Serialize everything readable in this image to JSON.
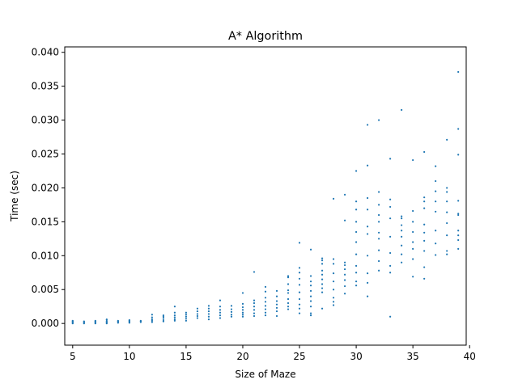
{
  "chart_data": {
    "type": "scatter",
    "title": "A* Algorithm",
    "xlabel": "Size of Maze",
    "ylabel": "Time (sec)",
    "xlim": [
      4.3,
      39.7
    ],
    "ylim": [
      -0.0032,
      0.0408
    ],
    "xticks": [
      5,
      10,
      15,
      20,
      25,
      30,
      35,
      40
    ],
    "xtick_labels": [
      "5",
      "10",
      "15",
      "20",
      "25",
      "30",
      "35",
      "40"
    ],
    "yticks": [
      0.0,
      0.005,
      0.01,
      0.015,
      0.02,
      0.025,
      0.03,
      0.035,
      0.04
    ],
    "ytick_labels": [
      "0.000",
      "0.005",
      "0.010",
      "0.015",
      "0.020",
      "0.025",
      "0.030",
      "0.035",
      "0.040"
    ],
    "grid": false,
    "color": "#1f77b4",
    "series": [
      {
        "points": [
          [
            5,
            0.0
          ],
          [
            5,
            0.0001
          ],
          [
            5,
            0.0002
          ],
          [
            5,
            0.0003
          ],
          [
            5,
            0.0004
          ],
          [
            6,
            0.0
          ],
          [
            6,
            0.0001
          ],
          [
            6,
            0.0002
          ],
          [
            6,
            0.0003
          ],
          [
            7,
            0.0
          ],
          [
            7,
            0.0001
          ],
          [
            7,
            0.0002
          ],
          [
            7,
            0.0003
          ],
          [
            7,
            0.0004
          ],
          [
            8,
            0.0
          ],
          [
            8,
            0.0001
          ],
          [
            8,
            0.0002
          ],
          [
            8,
            0.0003
          ],
          [
            8,
            0.0005
          ],
          [
            8,
            0.0006
          ],
          [
            9,
            0.0001
          ],
          [
            9,
            0.0002
          ],
          [
            9,
            0.0003
          ],
          [
            9,
            0.0004
          ],
          [
            10,
            0.0001
          ],
          [
            10,
            0.0002
          ],
          [
            10,
            0.0003
          ],
          [
            10,
            0.0004
          ],
          [
            10,
            0.0005
          ],
          [
            11,
            0.0002
          ],
          [
            11,
            0.0003
          ],
          [
            11,
            0.0004
          ],
          [
            12,
            0.0002
          ],
          [
            12,
            0.0004
          ],
          [
            12,
            0.0006
          ],
          [
            12,
            0.0009
          ],
          [
            12,
            0.0013
          ],
          [
            13,
            0.0003
          ],
          [
            13,
            0.0005
          ],
          [
            13,
            0.0008
          ],
          [
            13,
            0.001
          ],
          [
            13,
            0.0012
          ],
          [
            14,
            0.0004
          ],
          [
            14,
            0.0006
          ],
          [
            14,
            0.0009
          ],
          [
            14,
            0.0012
          ],
          [
            14,
            0.0016
          ],
          [
            14,
            0.0025
          ],
          [
            15,
            0.0004
          ],
          [
            15,
            0.0007
          ],
          [
            15,
            0.001
          ],
          [
            15,
            0.0013
          ],
          [
            15,
            0.0016
          ],
          [
            16,
            0.0008
          ],
          [
            16,
            0.0011
          ],
          [
            16,
            0.0014
          ],
          [
            16,
            0.0018
          ],
          [
            16,
            0.0022
          ],
          [
            17,
            0.0006
          ],
          [
            17,
            0.001
          ],
          [
            17,
            0.0014
          ],
          [
            17,
            0.0018
          ],
          [
            17,
            0.0022
          ],
          [
            17,
            0.0026
          ],
          [
            18,
            0.0008
          ],
          [
            18,
            0.0012
          ],
          [
            18,
            0.0016
          ],
          [
            18,
            0.002
          ],
          [
            18,
            0.0025
          ],
          [
            18,
            0.0034
          ],
          [
            19,
            0.001
          ],
          [
            19,
            0.0013
          ],
          [
            19,
            0.0017
          ],
          [
            19,
            0.0021
          ],
          [
            19,
            0.0026
          ],
          [
            20,
            0.001
          ],
          [
            20,
            0.0013
          ],
          [
            20,
            0.0016
          ],
          [
            20,
            0.002
          ],
          [
            20,
            0.0024
          ],
          [
            20,
            0.0029
          ],
          [
            20,
            0.0045
          ],
          [
            21,
            0.0011
          ],
          [
            21,
            0.0015
          ],
          [
            21,
            0.002
          ],
          [
            21,
            0.0025
          ],
          [
            21,
            0.003
          ],
          [
            21,
            0.0034
          ],
          [
            21,
            0.0076
          ],
          [
            22,
            0.0012
          ],
          [
            22,
            0.0016
          ],
          [
            22,
            0.0021
          ],
          [
            22,
            0.0026
          ],
          [
            22,
            0.0032
          ],
          [
            22,
            0.0038
          ],
          [
            22,
            0.0047
          ],
          [
            22,
            0.0054
          ],
          [
            23,
            0.0011
          ],
          [
            23,
            0.0018
          ],
          [
            23,
            0.0023
          ],
          [
            23,
            0.0028
          ],
          [
            23,
            0.0033
          ],
          [
            23,
            0.004
          ],
          [
            23,
            0.0048
          ],
          [
            24,
            0.0021
          ],
          [
            24,
            0.0025
          ],
          [
            24,
            0.003
          ],
          [
            24,
            0.0036
          ],
          [
            24,
            0.0045
          ],
          [
            24,
            0.0049
          ],
          [
            24,
            0.0058
          ],
          [
            24,
            0.0068
          ],
          [
            24,
            0.007
          ],
          [
            25,
            0.0015
          ],
          [
            25,
            0.0022
          ],
          [
            25,
            0.0028
          ],
          [
            25,
            0.0036
          ],
          [
            25,
            0.0046
          ],
          [
            25,
            0.0057
          ],
          [
            25,
            0.0066
          ],
          [
            25,
            0.0075
          ],
          [
            25,
            0.0082
          ],
          [
            25,
            0.0119
          ],
          [
            26,
            0.0012
          ],
          [
            26,
            0.0015
          ],
          [
            26,
            0.0025
          ],
          [
            26,
            0.0033
          ],
          [
            26,
            0.004
          ],
          [
            26,
            0.0048
          ],
          [
            26,
            0.0056
          ],
          [
            26,
            0.0062
          ],
          [
            26,
            0.007
          ],
          [
            26,
            0.0109
          ],
          [
            27,
            0.0022
          ],
          [
            27,
            0.0046
          ],
          [
            27,
            0.0052
          ],
          [
            27,
            0.0058
          ],
          [
            27,
            0.0065
          ],
          [
            27,
            0.0072
          ],
          [
            27,
            0.0078
          ],
          [
            27,
            0.0088
          ],
          [
            27,
            0.0093
          ],
          [
            27,
            0.0096
          ],
          [
            28,
            0.0027
          ],
          [
            28,
            0.0032
          ],
          [
            28,
            0.0038
          ],
          [
            28,
            0.005
          ],
          [
            28,
            0.0062
          ],
          [
            28,
            0.0074
          ],
          [
            28,
            0.0088
          ],
          [
            28,
            0.0095
          ],
          [
            28,
            0.0184
          ],
          [
            29,
            0.0044
          ],
          [
            29,
            0.0055
          ],
          [
            29,
            0.0064
          ],
          [
            29,
            0.0072
          ],
          [
            29,
            0.008
          ],
          [
            29,
            0.0086
          ],
          [
            29,
            0.009
          ],
          [
            29,
            0.0152
          ],
          [
            29,
            0.019
          ],
          [
            30,
            0.0056
          ],
          [
            30,
            0.0062
          ],
          [
            30,
            0.0075
          ],
          [
            30,
            0.0085
          ],
          [
            30,
            0.0102
          ],
          [
            30,
            0.012
          ],
          [
            30,
            0.0135
          ],
          [
            30,
            0.015
          ],
          [
            30,
            0.0168
          ],
          [
            30,
            0.018
          ],
          [
            30,
            0.0225
          ],
          [
            31,
            0.004
          ],
          [
            31,
            0.006
          ],
          [
            31,
            0.0074
          ],
          [
            31,
            0.01
          ],
          [
            31,
            0.0132
          ],
          [
            31,
            0.0143
          ],
          [
            31,
            0.0168
          ],
          [
            31,
            0.0185
          ],
          [
            31,
            0.0233
          ],
          [
            31,
            0.0293
          ],
          [
            32,
            0.0078
          ],
          [
            32,
            0.0092
          ],
          [
            32,
            0.0108
          ],
          [
            32,
            0.0125
          ],
          [
            32,
            0.0134
          ],
          [
            32,
            0.015
          ],
          [
            32,
            0.016
          ],
          [
            32,
            0.0175
          ],
          [
            32,
            0.0194
          ],
          [
            32,
            0.03
          ],
          [
            33,
            0.001
          ],
          [
            33,
            0.0075
          ],
          [
            33,
            0.0085
          ],
          [
            33,
            0.0104
          ],
          [
            33,
            0.0128
          ],
          [
            33,
            0.0155
          ],
          [
            33,
            0.0172
          ],
          [
            33,
            0.0183
          ],
          [
            33,
            0.0243
          ],
          [
            34,
            0.009
          ],
          [
            34,
            0.0102
          ],
          [
            34,
            0.0115
          ],
          [
            34,
            0.0128
          ],
          [
            34,
            0.0137
          ],
          [
            34,
            0.0145
          ],
          [
            34,
            0.0155
          ],
          [
            34,
            0.0158
          ],
          [
            34,
            0.0315
          ],
          [
            35,
            0.0069
          ],
          [
            35,
            0.0095
          ],
          [
            35,
            0.011
          ],
          [
            35,
            0.012
          ],
          [
            35,
            0.0135
          ],
          [
            35,
            0.015
          ],
          [
            35,
            0.0166
          ],
          [
            35,
            0.0241
          ],
          [
            36,
            0.0066
          ],
          [
            36,
            0.0083
          ],
          [
            36,
            0.0107
          ],
          [
            36,
            0.0122
          ],
          [
            36,
            0.0134
          ],
          [
            36,
            0.0146
          ],
          [
            36,
            0.017
          ],
          [
            36,
            0.018
          ],
          [
            36,
            0.0186
          ],
          [
            36,
            0.0253
          ],
          [
            37,
            0.0101
          ],
          [
            37,
            0.0118
          ],
          [
            37,
            0.0137
          ],
          [
            37,
            0.0165
          ],
          [
            37,
            0.018
          ],
          [
            37,
            0.0195
          ],
          [
            37,
            0.021
          ],
          [
            37,
            0.0232
          ],
          [
            38,
            0.0102
          ],
          [
            38,
            0.0107
          ],
          [
            38,
            0.013
          ],
          [
            38,
            0.0148
          ],
          [
            38,
            0.0164
          ],
          [
            38,
            0.018
          ],
          [
            38,
            0.0194
          ],
          [
            38,
            0.02
          ],
          [
            38,
            0.0271
          ],
          [
            39,
            0.011
          ],
          [
            39,
            0.0123
          ],
          [
            39,
            0.013
          ],
          [
            39,
            0.0137
          ],
          [
            39,
            0.016
          ],
          [
            39,
            0.0162
          ],
          [
            39,
            0.0181
          ],
          [
            39,
            0.0249
          ],
          [
            39,
            0.0287
          ],
          [
            39,
            0.0371
          ]
        ]
      }
    ]
  }
}
